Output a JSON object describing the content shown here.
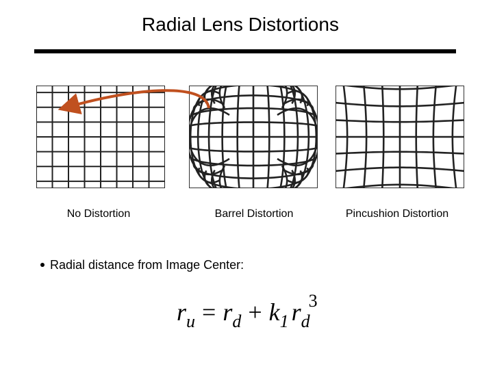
{
  "title": "Radial Lens Distortions",
  "images": [
    {
      "caption": "No Distortion"
    },
    {
      "caption": "Barrel Distortion"
    },
    {
      "caption": "Pincushion Distortion"
    }
  ],
  "bullet": "Radial distance from Image Center:",
  "formula": [
    "r",
    "u",
    "=",
    "r",
    "d",
    "+",
    "k",
    "1",
    "r",
    "d",
    "3"
  ]
}
